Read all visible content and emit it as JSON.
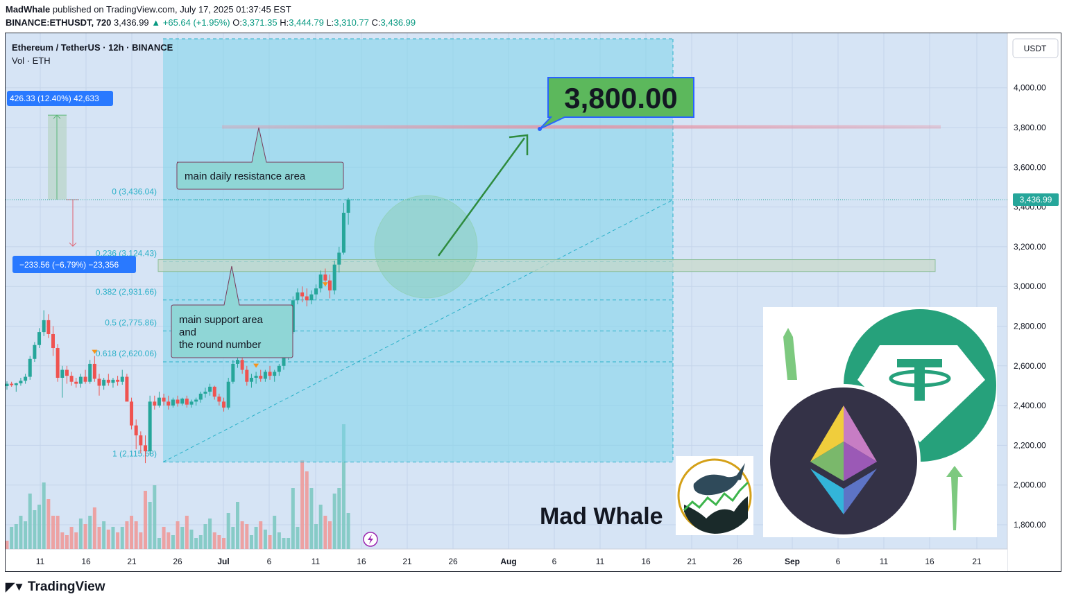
{
  "header": {
    "author": "MadWhale",
    "published": "published on TradingView.com, July 17, 2025 01:37:45 EST",
    "symbol": "BINANCE:ETHUSDT, 720",
    "last": "3,436.99",
    "change": "▲ +65.64 (+1.95%)",
    "o_label": "O:",
    "o": "3,371.35",
    "h_label": "H:",
    "h": "3,444.79",
    "l_label": "L:",
    "l": "3,310.77",
    "c_label": "C:",
    "c": "3,436.99"
  },
  "legend": {
    "title": "Ethereum / TetherUS · 12h · BINANCE",
    "volume": "Vol · ETH"
  },
  "currency_button": "USDT",
  "last_price_tag": "3,436.99",
  "measure_up": "426.33 (12.40%) 42,633",
  "measure_down": "−233.56 (−6.79%) −23,356",
  "fib_levels": [
    {
      "label": "0 (3,436.04)",
      "price": 3436.04
    },
    {
      "label": "0.236 (3,124.43)",
      "price": 3124.43
    },
    {
      "label": "0.382 (2,931.66)",
      "price": 2931.66
    },
    {
      "label": "0.5 (2,775.86)",
      "price": 2775.86
    },
    {
      "label": "0.618 (2,620.06)",
      "price": 2620.06
    },
    {
      "label": "1 (2,115.68)",
      "price": 2115.68
    }
  ],
  "annotations": {
    "resistance": "main daily resistance area",
    "support_lines": [
      "main support area",
      "and",
      "the round number"
    ],
    "target": "3,800.00"
  },
  "branding": {
    "author_logo_text": "Mad Whale",
    "footer": "TradingView"
  },
  "colors": {
    "bull": "#26a69a",
    "bear": "#ef5350",
    "fib_zone": "#7dd3ea",
    "target_bg": "#5cb85c",
    "tag_blue": "#2962ff",
    "tether": "#26a17b",
    "eth_dark": "#343247"
  },
  "chart_data": {
    "type": "candlestick",
    "title": "Ethereum / TetherUS · 12h · BINANCE",
    "y_ticks": [
      "4,000.00",
      "3,800.00",
      "3,600.00",
      "3,400.00",
      "3,200.00",
      "3,000.00",
      "2,800.00",
      "2,600.00",
      "2,400.00",
      "2,200.00",
      "2,000.00",
      "1,800.00"
    ],
    "y_tick_values": [
      4000,
      3800,
      3600,
      3400,
      3200,
      3000,
      2800,
      2600,
      2400,
      2200,
      2000,
      1800
    ],
    "x_ticks": [
      "11",
      "16",
      "21",
      "26",
      "Jul",
      "6",
      "11",
      "16",
      "21",
      "26",
      "Aug",
      "6",
      "11",
      "16",
      "21",
      "26",
      "Sep",
      "6",
      "11",
      "16",
      "21"
    ],
    "ylim": [
      1690,
      4380
    ],
    "target_price": 3800,
    "support_zone": [
      3075,
      3135
    ],
    "resistance_zone": [
      3795,
      3805
    ],
    "candles": [
      [
        2498,
        2522,
        2480,
        2510
      ],
      [
        2510,
        2520,
        2495,
        2503
      ],
      [
        2503,
        2515,
        2470,
        2512
      ],
      [
        2512,
        2540,
        2500,
        2525
      ],
      [
        2525,
        2560,
        2510,
        2545
      ],
      [
        2545,
        2650,
        2530,
        2635
      ],
      [
        2635,
        2720,
        2620,
        2705
      ],
      [
        2705,
        2790,
        2690,
        2770
      ],
      [
        2770,
        2880,
        2750,
        2830
      ],
      [
        2830,
        2860,
        2740,
        2760
      ],
      [
        2760,
        2800,
        2650,
        2690
      ],
      [
        2690,
        2710,
        2520,
        2540
      ],
      [
        2540,
        2600,
        2440,
        2580
      ],
      [
        2580,
        2600,
        2510,
        2550
      ],
      [
        2550,
        2570,
        2500,
        2520
      ],
      [
        2520,
        2540,
        2490,
        2510
      ],
      [
        2510,
        2560,
        2490,
        2545
      ],
      [
        2545,
        2580,
        2510,
        2520
      ],
      [
        2520,
        2630,
        2510,
        2610
      ],
      [
        2610,
        2650,
        2520,
        2535
      ],
      [
        2535,
        2560,
        2450,
        2500
      ],
      [
        2500,
        2540,
        2480,
        2530
      ],
      [
        2530,
        2560,
        2500,
        2515
      ],
      [
        2515,
        2540,
        2490,
        2530
      ],
      [
        2530,
        2550,
        2500,
        2520
      ],
      [
        2520,
        2580,
        2505,
        2545
      ],
      [
        2545,
        2560,
        2440,
        2420
      ],
      [
        2420,
        2440,
        2280,
        2300
      ],
      [
        2300,
        2330,
        2180,
        2250
      ],
      [
        2250,
        2270,
        2160,
        2200
      ],
      [
        2200,
        2250,
        2110,
        2170
      ],
      [
        2170,
        2450,
        2150,
        2420
      ],
      [
        2420,
        2450,
        2380,
        2400
      ],
      [
        2400,
        2470,
        2390,
        2440
      ],
      [
        2440,
        2460,
        2400,
        2420
      ],
      [
        2420,
        2450,
        2380,
        2400
      ],
      [
        2400,
        2440,
        2390,
        2430
      ],
      [
        2430,
        2450,
        2395,
        2410
      ],
      [
        2410,
        2440,
        2400,
        2435
      ],
      [
        2435,
        2450,
        2390,
        2405
      ],
      [
        2405,
        2430,
        2390,
        2420
      ],
      [
        2420,
        2440,
        2400,
        2430
      ],
      [
        2430,
        2470,
        2415,
        2460
      ],
      [
        2460,
        2490,
        2440,
        2470
      ],
      [
        2470,
        2510,
        2450,
        2495
      ],
      [
        2495,
        2500,
        2430,
        2445
      ],
      [
        2445,
        2460,
        2400,
        2420
      ],
      [
        2420,
        2440,
        2370,
        2390
      ],
      [
        2390,
        2540,
        2380,
        2520
      ],
      [
        2520,
        2630,
        2510,
        2610
      ],
      [
        2610,
        2660,
        2590,
        2630
      ],
      [
        2630,
        2650,
        2560,
        2580
      ],
      [
        2580,
        2600,
        2500,
        2520
      ],
      [
        2520,
        2560,
        2490,
        2540
      ],
      [
        2540,
        2570,
        2510,
        2550
      ],
      [
        2550,
        2580,
        2520,
        2535
      ],
      [
        2535,
        2580,
        2520,
        2570
      ],
      [
        2570,
        2600,
        2530,
        2550
      ],
      [
        2550,
        2580,
        2520,
        2570
      ],
      [
        2570,
        2610,
        2550,
        2600
      ],
      [
        2600,
        2660,
        2580,
        2640
      ],
      [
        2640,
        2790,
        2630,
        2770
      ],
      [
        2770,
        2950,
        2760,
        2930
      ],
      [
        2930,
        2990,
        2910,
        2970
      ],
      [
        2970,
        3000,
        2920,
        2950
      ],
      [
        2950,
        2990,
        2900,
        2930
      ],
      [
        2930,
        2980,
        2910,
        2960
      ],
      [
        2960,
        3010,
        2930,
        2990
      ],
      [
        2990,
        3080,
        2970,
        3060
      ],
      [
        3060,
        3090,
        3000,
        3030
      ],
      [
        3030,
        3060,
        2940,
        2980
      ],
      [
        2980,
        3130,
        2960,
        3110
      ],
      [
        3110,
        3200,
        3070,
        3170
      ],
      [
        3170,
        3420,
        3160,
        3371
      ],
      [
        3371,
        3445,
        3311,
        3437
      ]
    ],
    "volumes": [
      3,
      8,
      9,
      12,
      10,
      20,
      14,
      16,
      24,
      18,
      12,
      12,
      6,
      5,
      8,
      6,
      11,
      9,
      12,
      15,
      8,
      10,
      7,
      8,
      6,
      8,
      10,
      12,
      10,
      6,
      21,
      17,
      23,
      4,
      8,
      6,
      5,
      10,
      8,
      12,
      7,
      4,
      5,
      9,
      11,
      6,
      5,
      4,
      13,
      8,
      17,
      10,
      9,
      5,
      8,
      10,
      7,
      5,
      12,
      6,
      4,
      4,
      22,
      8,
      32,
      28,
      22,
      9,
      16,
      12,
      10,
      20,
      22,
      45,
      13
    ],
    "vol_up": [
      false,
      true,
      true,
      true,
      true,
      true,
      true,
      true,
      true,
      false,
      false,
      false,
      false,
      false,
      false,
      false,
      true,
      false,
      true,
      false,
      false,
      true,
      false,
      true,
      false,
      true,
      false,
      false,
      false,
      false,
      false,
      true,
      true,
      true,
      false,
      false,
      true,
      false,
      true,
      false,
      true,
      true,
      true,
      true,
      true,
      false,
      false,
      false,
      true,
      true,
      true,
      false,
      false,
      true,
      true,
      false,
      true,
      false,
      true,
      true,
      true,
      true,
      true,
      true,
      false,
      false,
      true,
      true,
      true,
      false,
      false,
      true,
      true,
      true,
      true
    ]
  }
}
